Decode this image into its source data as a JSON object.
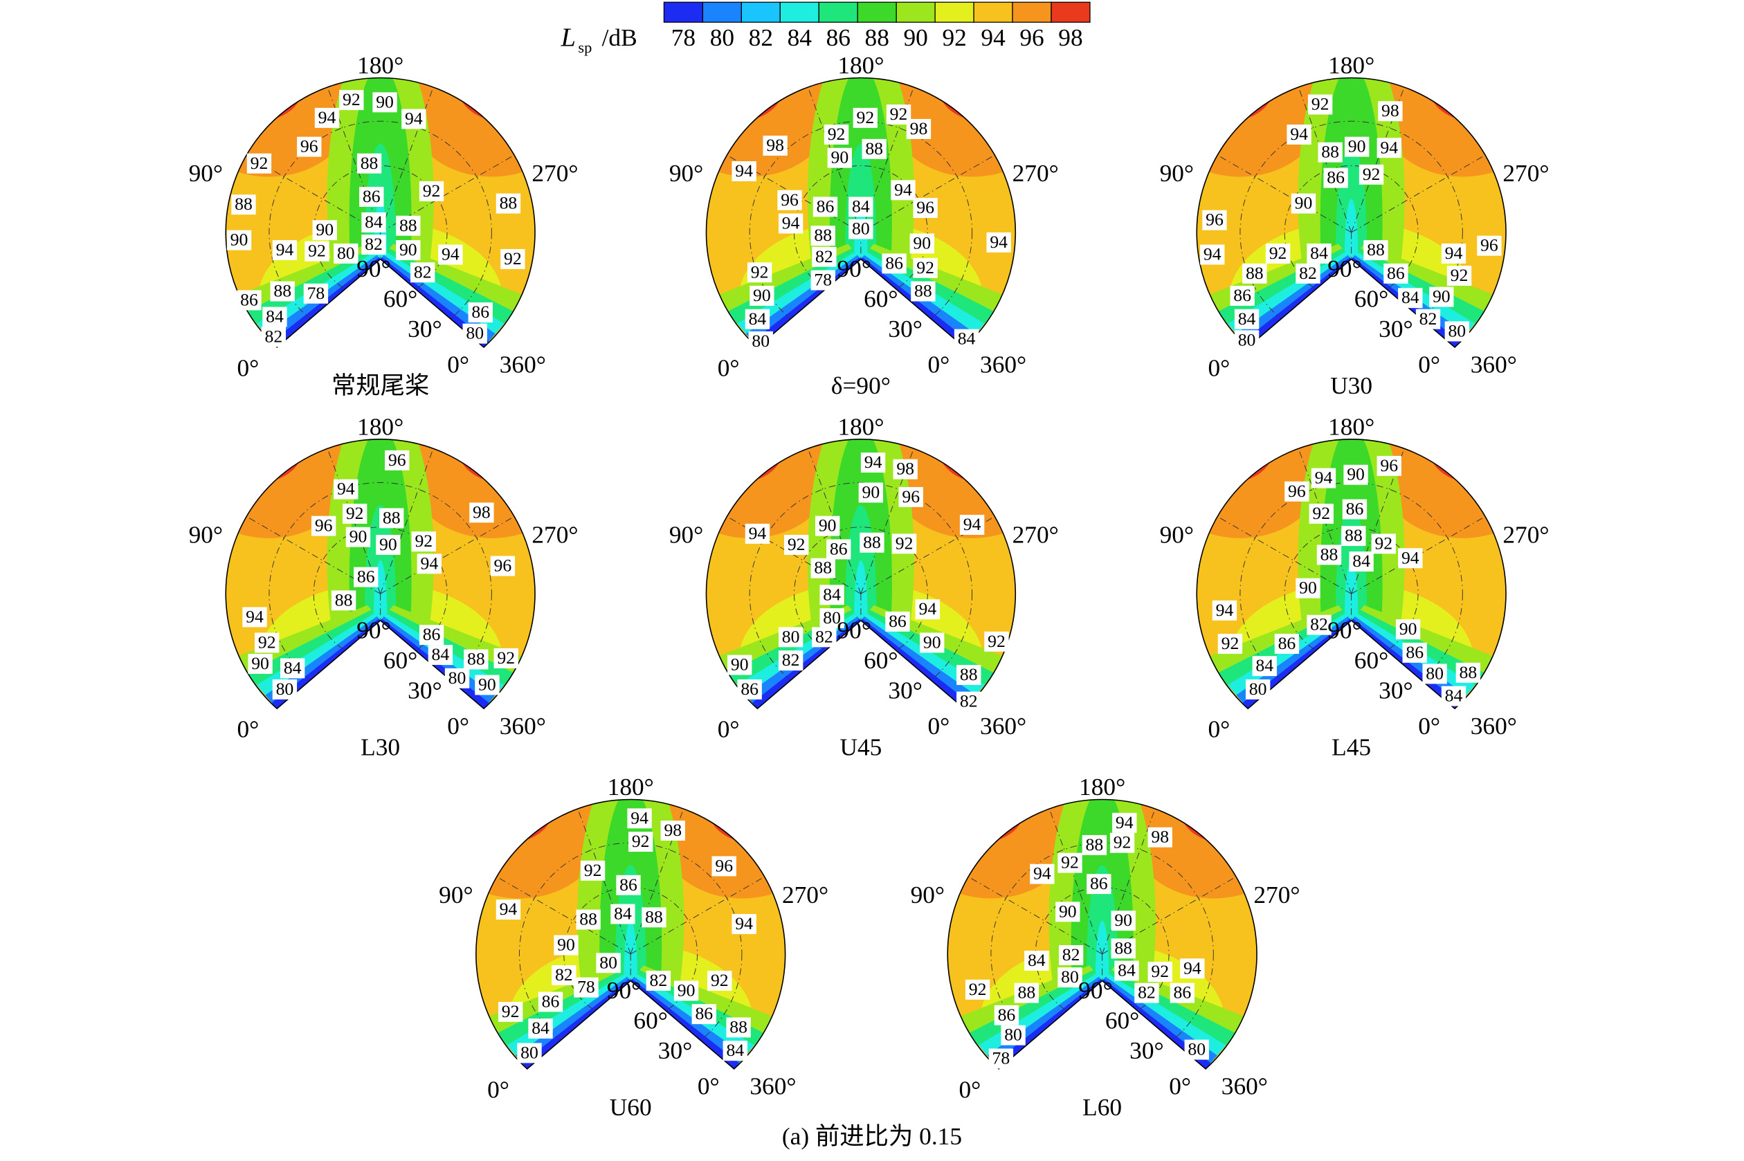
{
  "colorbar": {
    "label": "L",
    "label_subscript": "sp",
    "label_unit": "/dB",
    "ticks": [
      78,
      80,
      82,
      84,
      86,
      88,
      90,
      92,
      94,
      96,
      98
    ],
    "lim": [
      77,
      99
    ],
    "colors": [
      "#1c2cf2",
      "#1a84ff",
      "#19c4ff",
      "#1eeee0",
      "#1ee67a",
      "#3cd82a",
      "#9ce61e",
      "#e4f01e",
      "#f8c21e",
      "#f6951e",
      "#ea3a1e"
    ]
  },
  "chart_data": [
    {
      "type": "polar-contour",
      "title": "常规尾桨",
      "angle_labels": [
        "180°",
        "90°",
        "270°",
        "0°",
        "30°",
        "60°",
        "90°",
        "0°",
        "360°"
      ],
      "contour_labels": [
        92,
        90,
        94,
        94,
        96,
        92,
        88,
        88,
        86,
        92,
        88,
        84,
        88,
        90,
        90,
        82,
        90,
        94,
        92,
        80,
        94,
        92,
        82,
        88,
        78,
        86,
        84,
        86,
        82,
        80
      ]
    },
    {
      "type": "polar-contour",
      "title": "δ=90°",
      "angle_labels": [
        "180°",
        "90°",
        "270°",
        "0°",
        "30°",
        "60°",
        "90°",
        "0°",
        "360°"
      ],
      "contour_labels": [
        92,
        92,
        98,
        98,
        92,
        88,
        90,
        94,
        94,
        96,
        86,
        84,
        96,
        94,
        88,
        80,
        90,
        94,
        82,
        86,
        92,
        92,
        78,
        88,
        90,
        84,
        80,
        84
      ]
    },
    {
      "type": "polar-contour",
      "title": "U30",
      "angle_labels": [
        "180°",
        "90°",
        "270°",
        "0°",
        "30°",
        "60°",
        "90°",
        "0°",
        "360°"
      ],
      "contour_labels": [
        92,
        98,
        94,
        88,
        90,
        94,
        86,
        92,
        90,
        96,
        94,
        92,
        84,
        88,
        94,
        96,
        88,
        82,
        86,
        92,
        86,
        90,
        84,
        84,
        82,
        80,
        80
      ]
    },
    {
      "type": "polar-contour",
      "title": "L30",
      "angle_labels": [
        "180°",
        "90°",
        "270°",
        "0°",
        "30°",
        "60°",
        "90°",
        "0°",
        "360°"
      ],
      "contour_labels": [
        96,
        94,
        92,
        88,
        96,
        90,
        90,
        92,
        98,
        94,
        96,
        86,
        88,
        94,
        92,
        86,
        90,
        84,
        84,
        88,
        92,
        80,
        80,
        90
      ]
    },
    {
      "type": "polar-contour",
      "title": "U45",
      "angle_labels": [
        "180°",
        "90°",
        "270°",
        "0°",
        "30°",
        "60°",
        "90°",
        "0°",
        "360°"
      ],
      "contour_labels": [
        94,
        98,
        90,
        96,
        94,
        90,
        94,
        92,
        86,
        88,
        92,
        88,
        84,
        80,
        94,
        86,
        80,
        82,
        90,
        92,
        90,
        82,
        88,
        86,
        82
      ]
    },
    {
      "type": "polar-contour",
      "title": "L45",
      "angle_labels": [
        "180°",
        "90°",
        "270°",
        "0°",
        "30°",
        "60°",
        "90°",
        "0°",
        "360°"
      ],
      "contour_labels": [
        90,
        96,
        94,
        96,
        92,
        86,
        88,
        92,
        94,
        88,
        84,
        90,
        94,
        92,
        86,
        82,
        90,
        86,
        84,
        80,
        88,
        80,
        84
      ]
    },
    {
      "type": "polar-contour",
      "title": "U60",
      "angle_labels": [
        "180°",
        "90°",
        "270°",
        "0°",
        "30°",
        "60°",
        "90°",
        "0°",
        "360°"
      ],
      "contour_labels": [
        94,
        98,
        92,
        96,
        92,
        86,
        94,
        88,
        84,
        88,
        94,
        90,
        80,
        82,
        78,
        82,
        90,
        92,
        86,
        92,
        86,
        84,
        88,
        80,
        84
      ]
    },
    {
      "type": "polar-contour",
      "title": "L60",
      "angle_labels": [
        "180°",
        "90°",
        "270°",
        "0°",
        "30°",
        "60°",
        "90°",
        "0°",
        "360°"
      ],
      "contour_labels": [
        94,
        92,
        88,
        98,
        92,
        94,
        86,
        90,
        90,
        88,
        82,
        84,
        84,
        92,
        94,
        80,
        82,
        86,
        92,
        88,
        86,
        80,
        78,
        80
      ]
    }
  ],
  "caption": "(a) 前进比为 0.15"
}
